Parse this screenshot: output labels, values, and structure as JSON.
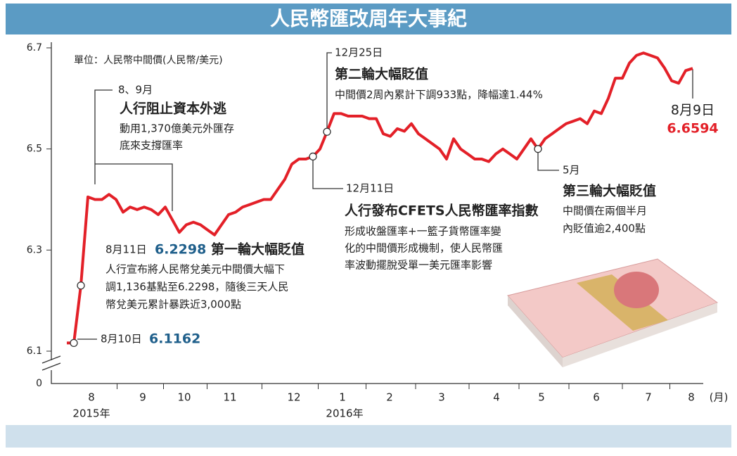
{
  "chart_data": {
    "type": "line",
    "title": "人民幣匯改周年大事紀",
    "unit_note": "單位：人民幣中間價(人民幣/美元)",
    "color": "#e32028",
    "values": [
      6.1162,
      6.1162,
      6.2298,
      6.405,
      6.4,
      6.4,
      6.41,
      6.4,
      6.375,
      6.385,
      6.38,
      6.385,
      6.38,
      6.37,
      6.385,
      6.36,
      6.335,
      6.35,
      6.355,
      6.35,
      6.34,
      6.33,
      6.35,
      6.37,
      6.375,
      6.385,
      6.39,
      6.395,
      6.4,
      6.4,
      6.42,
      6.44,
      6.47,
      6.48,
      6.48,
      6.485,
      6.5,
      6.534,
      6.57,
      6.57,
      6.565,
      6.565,
      6.565,
      6.56,
      6.56,
      6.53,
      6.525,
      6.54,
      6.535,
      6.55,
      6.53,
      6.52,
      6.51,
      6.5,
      6.48,
      6.52,
      6.5,
      6.49,
      6.48,
      6.48,
      6.475,
      6.49,
      6.5,
      6.49,
      6.48,
      6.5,
      6.52,
      6.5,
      6.52,
      6.53,
      6.54,
      6.55,
      6.555,
      6.56,
      6.55,
      6.575,
      6.57,
      6.6,
      6.64,
      6.64,
      6.67,
      6.685,
      6.69,
      6.685,
      6.68,
      6.66,
      6.635,
      6.63,
      6.655,
      6.6594
    ],
    "markers": [
      1,
      2,
      35,
      37,
      67
    ],
    "xlim": [
      0,
      89
    ],
    "xticks": [
      {
        "value": 3.5,
        "label": "8"
      },
      {
        "value": 10.8,
        "label": "9"
      },
      {
        "value": 16.7,
        "label": "10"
      },
      {
        "value": 23.2,
        "label": "11"
      },
      {
        "value": 32.3,
        "label": "12"
      },
      {
        "value": 39.2,
        "label": "1"
      },
      {
        "value": 45.9,
        "label": "2"
      },
      {
        "value": 53.3,
        "label": "3"
      },
      {
        "value": 61.1,
        "label": "4"
      },
      {
        "value": 67.5,
        "label": "5"
      },
      {
        "value": 75.3,
        "label": "6"
      },
      {
        "value": 82.7,
        "label": "7"
      },
      {
        "value": 88.8,
        "label": "8"
      }
    ],
    "x_unit": "(月)",
    "years": [
      "2015年",
      "2016年"
    ],
    "ylim": [
      6.1,
      6.7
    ],
    "yticks": [
      6.1,
      6.3,
      6.5,
      6.7
    ],
    "yticks_below_break": [
      0
    ],
    "annotations": {
      "capital": [
        "8、9月",
        "人行阻止資本外逃",
        "動用1,370億美元外匯存",
        "底來支撐匯率"
      ],
      "second": [
        "12月25日",
        "第二輪大幅貶值",
        "中間價2周內累計下調933點，降幅達1.44%"
      ],
      "latest": "8月9日",
      "cfets": [
        "12月11日",
        "人行發布CFETS人民幣匯率指數",
        "形成收盤匯率+一籃子貨幣匯率變",
        "化的中間價形成機制，使人民幣匯",
        "率波動擺脫受單一美元匯率影響"
      ],
      "third": [
        "5月",
        "第三輪大幅貶值",
        "中間價在兩個半月",
        "內貶值逾2,400點"
      ],
      "first": [
        "8月11日",
        "第一輪大幅貶值",
        "人行宣布將人民幣兌美元中間價大幅下",
        "調1,136基點至6.2298，隨後三天人民",
        "幣兌美元累計暴跌近3,000點"
      ],
      "start": "8月10日"
    }
  }
}
